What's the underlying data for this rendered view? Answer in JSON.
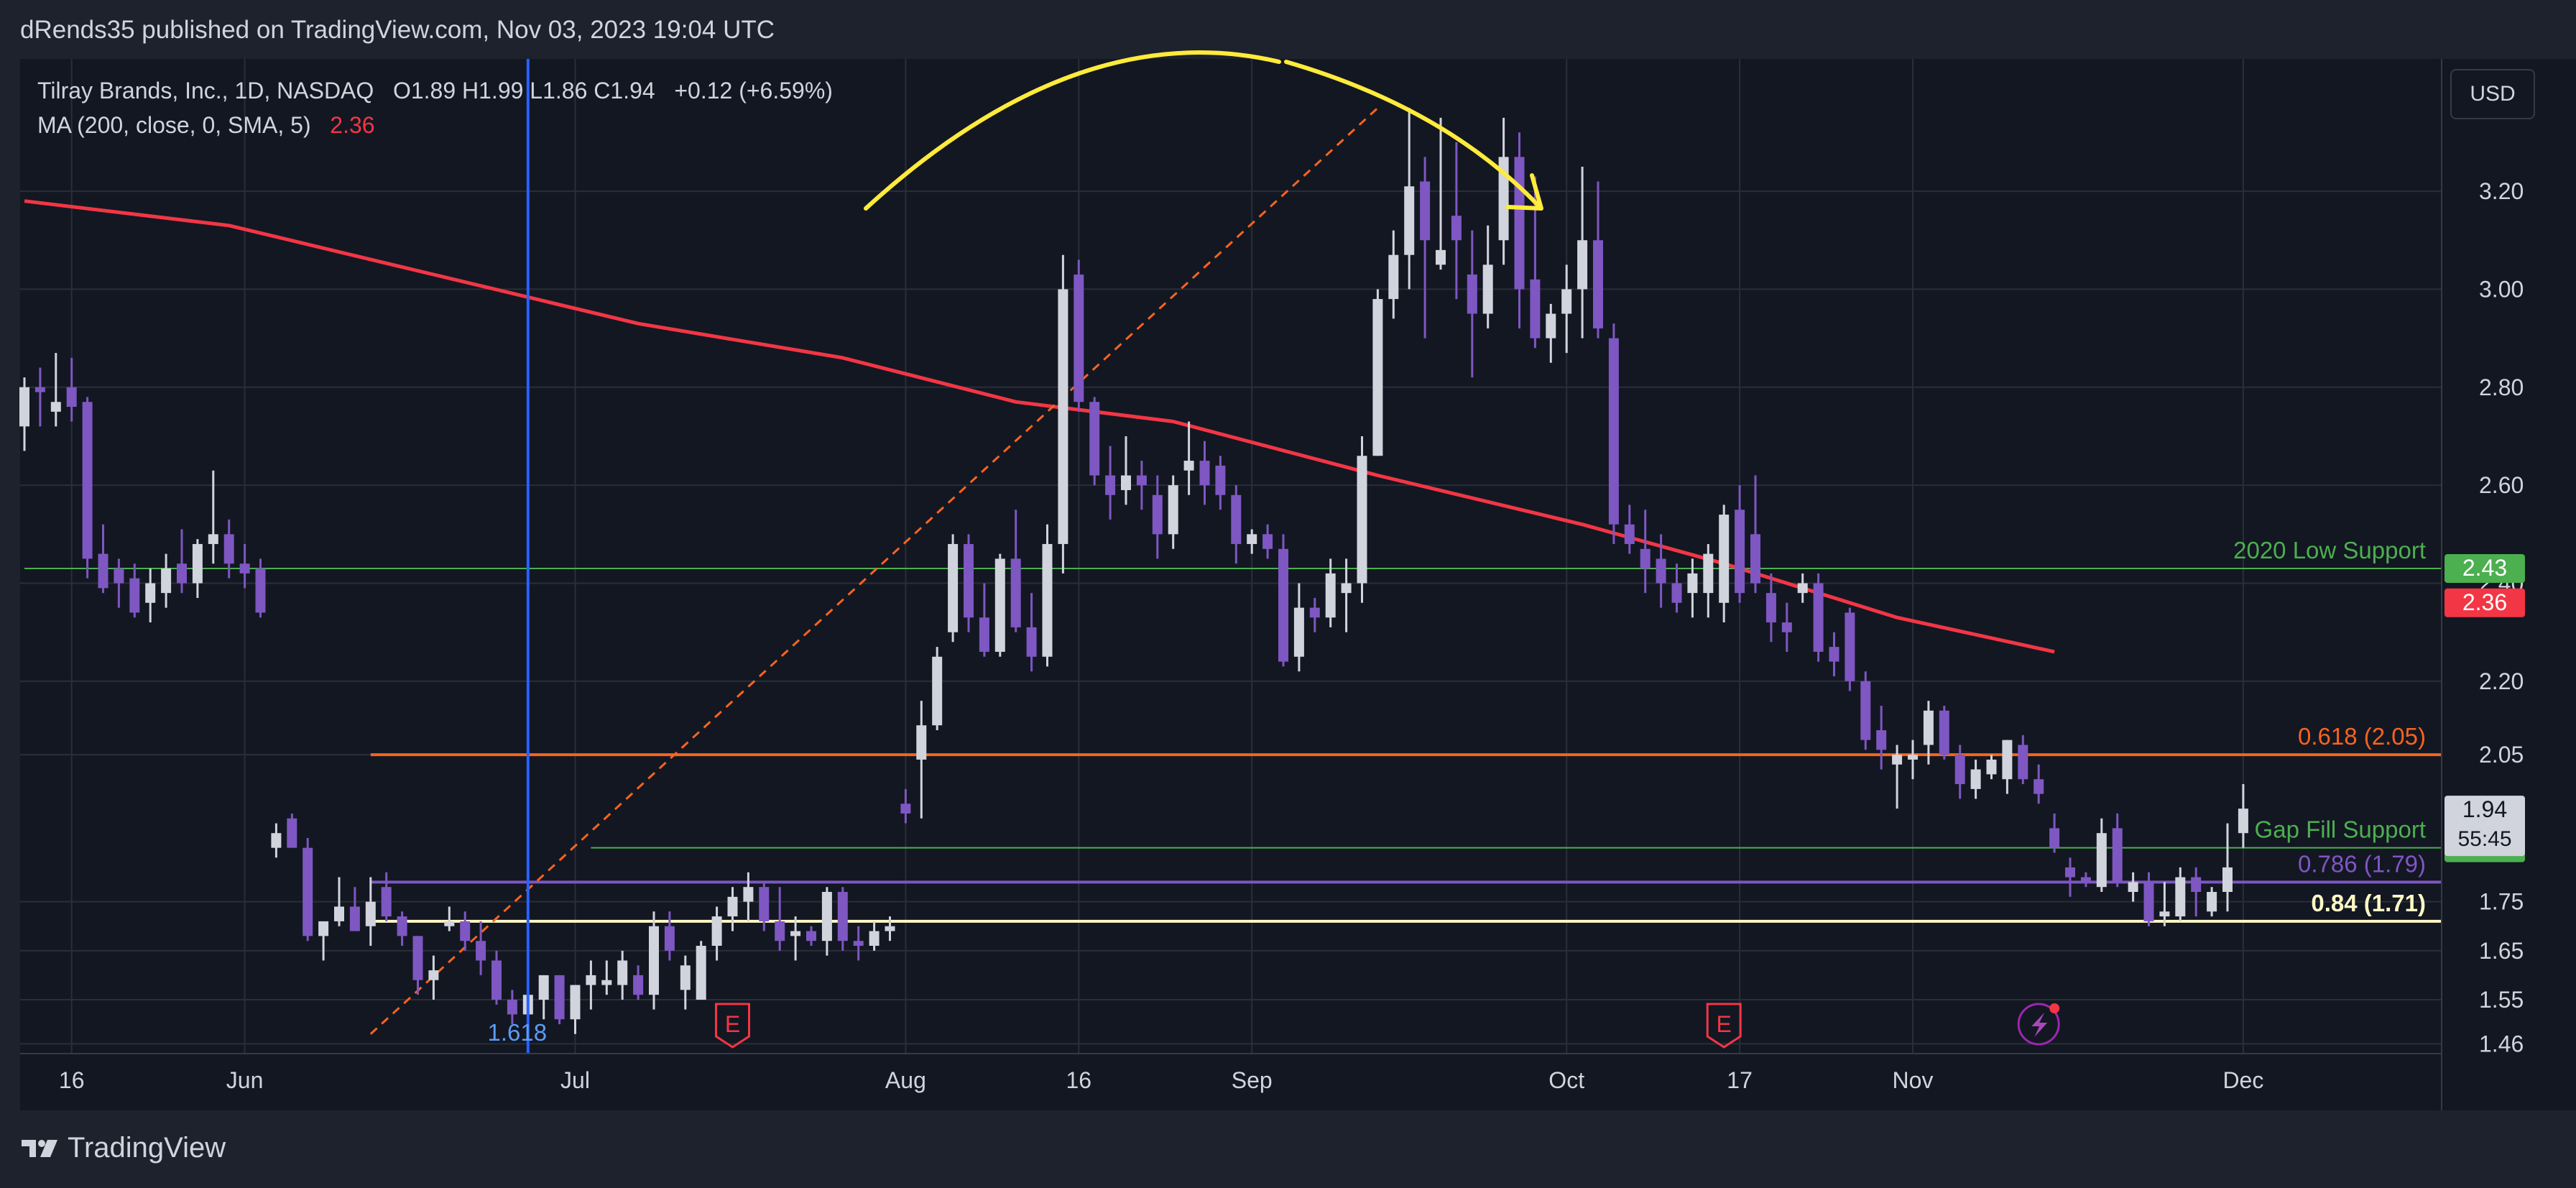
{
  "header": {
    "published": "dRends35 published on TradingView.com, Nov 03, 2023 19:04 UTC"
  },
  "legend": {
    "symbol": "Tilray Brands, Inc., 1D, NASDAQ",
    "ohlc": "O1.89  H1.99  L1.86  C1.94",
    "change": "+0.12 (+6.59%)",
    "ma_label": "MA (200, close, 0, SMA, 5)",
    "ma_value": "2.36"
  },
  "currency_button": "USD",
  "footer": {
    "brand": "TradingView"
  },
  "colors": {
    "background": "#131722",
    "up_candle": "#d1d4dc",
    "down_candle": "#7e57c2",
    "ma_line": "#f23645",
    "fib_0618": "#f7641e",
    "fib_0786": "#7e57c2",
    "fib_084": "#fff9c4",
    "support": "#4caf50",
    "arrow": "#ffeb3b",
    "vline": "#2962ff"
  },
  "chart_data": {
    "type": "candlestick",
    "title": "Tilray Brands, Inc., 1D, NASDAQ",
    "ylim": [
      1.44,
      3.47
    ],
    "y_ticks": [
      1.46,
      1.55,
      1.65,
      1.75,
      2.05,
      2.2,
      2.4,
      2.6,
      2.8,
      3.0,
      3.2
    ],
    "x_ticks": [
      {
        "label": "16",
        "i": 3
      },
      {
        "label": "Jun",
        "i": 14
      },
      {
        "label": "Jul",
        "i": 35
      },
      {
        "label": "Aug",
        "i": 56
      },
      {
        "label": "16",
        "i": 67
      },
      {
        "label": "Sep",
        "i": 78
      },
      {
        "label": "Oct",
        "i": 98
      },
      {
        "label": "17",
        "i": 109
      },
      {
        "label": "Nov",
        "i": 120
      },
      {
        "label": "Dec",
        "i": 141
      }
    ],
    "candles": [
      {
        "o": 2.72,
        "h": 2.82,
        "l": 2.67,
        "c": 2.8
      },
      {
        "o": 2.8,
        "h": 2.84,
        "l": 2.72,
        "c": 2.79
      },
      {
        "o": 2.75,
        "h": 2.87,
        "l": 2.72,
        "c": 2.77
      },
      {
        "o": 2.8,
        "h": 2.86,
        "l": 2.73,
        "c": 2.76
      },
      {
        "o": 2.77,
        "h": 2.78,
        "l": 2.41,
        "c": 2.45
      },
      {
        "o": 2.46,
        "h": 2.52,
        "l": 2.38,
        "c": 2.39
      },
      {
        "o": 2.43,
        "h": 2.45,
        "l": 2.35,
        "c": 2.4
      },
      {
        "o": 2.41,
        "h": 2.44,
        "l": 2.33,
        "c": 2.34
      },
      {
        "o": 2.36,
        "h": 2.43,
        "l": 2.32,
        "c": 2.4
      },
      {
        "o": 2.38,
        "h": 2.46,
        "l": 2.35,
        "c": 2.43
      },
      {
        "o": 2.44,
        "h": 2.51,
        "l": 2.38,
        "c": 2.4
      },
      {
        "o": 2.4,
        "h": 2.49,
        "l": 2.37,
        "c": 2.48
      },
      {
        "o": 2.48,
        "h": 2.63,
        "l": 2.44,
        "c": 2.5
      },
      {
        "o": 2.5,
        "h": 2.53,
        "l": 2.41,
        "c": 2.44
      },
      {
        "o": 2.44,
        "h": 2.48,
        "l": 2.39,
        "c": 2.42
      },
      {
        "o": 2.43,
        "h": 2.45,
        "l": 2.33,
        "c": 2.34
      },
      {
        "o": 1.86,
        "h": 1.91,
        "l": 1.84,
        "c": 1.89
      },
      {
        "o": 1.92,
        "h": 1.93,
        "l": 1.86,
        "c": 1.86
      },
      {
        "o": 1.86,
        "h": 1.88,
        "l": 1.67,
        "c": 1.68
      },
      {
        "o": 1.68,
        "h": 1.7,
        "l": 1.63,
        "c": 1.71
      },
      {
        "o": 1.71,
        "h": 1.8,
        "l": 1.7,
        "c": 1.74
      },
      {
        "o": 1.74,
        "h": 1.78,
        "l": 1.69,
        "c": 1.69
      },
      {
        "o": 1.7,
        "h": 1.8,
        "l": 1.66,
        "c": 1.75
      },
      {
        "o": 1.78,
        "h": 1.81,
        "l": 1.71,
        "c": 1.72
      },
      {
        "o": 1.72,
        "h": 1.73,
        "l": 1.66,
        "c": 1.68
      },
      {
        "o": 1.68,
        "h": 1.68,
        "l": 1.56,
        "c": 1.59
      },
      {
        "o": 1.59,
        "h": 1.64,
        "l": 1.55,
        "c": 1.61
      },
      {
        "o": 1.7,
        "h": 1.74,
        "l": 1.69,
        "c": 1.71
      },
      {
        "o": 1.71,
        "h": 1.73,
        "l": 1.65,
        "c": 1.67
      },
      {
        "o": 1.67,
        "h": 1.71,
        "l": 1.6,
        "c": 1.63
      },
      {
        "o": 1.63,
        "h": 1.65,
        "l": 1.54,
        "c": 1.55
      },
      {
        "o": 1.55,
        "h": 1.57,
        "l": 1.5,
        "c": 1.52
      },
      {
        "o": 1.52,
        "h": 1.58,
        "l": 1.5,
        "c": 1.56
      },
      {
        "o": 1.55,
        "h": 1.6,
        "l": 1.51,
        "c": 1.6
      },
      {
        "o": 1.6,
        "h": 1.6,
        "l": 1.5,
        "c": 1.51
      },
      {
        "o": 1.51,
        "h": 1.58,
        "l": 1.48,
        "c": 1.58
      },
      {
        "o": 1.58,
        "h": 1.63,
        "l": 1.53,
        "c": 1.6
      },
      {
        "o": 1.58,
        "h": 1.63,
        "l": 1.56,
        "c": 1.59
      },
      {
        "o": 1.58,
        "h": 1.65,
        "l": 1.55,
        "c": 1.63
      },
      {
        "o": 1.6,
        "h": 1.62,
        "l": 1.55,
        "c": 1.56
      },
      {
        "o": 1.56,
        "h": 1.73,
        "l": 1.53,
        "c": 1.7
      },
      {
        "o": 1.7,
        "h": 1.73,
        "l": 1.63,
        "c": 1.65
      },
      {
        "o": 1.57,
        "h": 1.64,
        "l": 1.53,
        "c": 1.62
      },
      {
        "o": 1.55,
        "h": 1.67,
        "l": 1.55,
        "c": 1.66
      },
      {
        "o": 1.66,
        "h": 1.74,
        "l": 1.63,
        "c": 1.72
      },
      {
        "o": 1.72,
        "h": 1.78,
        "l": 1.69,
        "c": 1.76
      },
      {
        "o": 1.75,
        "h": 1.81,
        "l": 1.71,
        "c": 1.78
      },
      {
        "o": 1.78,
        "h": 1.79,
        "l": 1.69,
        "c": 1.71
      },
      {
        "o": 1.71,
        "h": 1.78,
        "l": 1.65,
        "c": 1.67
      },
      {
        "o": 1.68,
        "h": 1.72,
        "l": 1.63,
        "c": 1.69
      },
      {
        "o": 1.69,
        "h": 1.7,
        "l": 1.66,
        "c": 1.67
      },
      {
        "o": 1.67,
        "h": 1.78,
        "l": 1.64,
        "c": 1.77
      },
      {
        "o": 1.77,
        "h": 1.78,
        "l": 1.65,
        "c": 1.67
      },
      {
        "o": 1.67,
        "h": 1.7,
        "l": 1.63,
        "c": 1.66
      },
      {
        "o": 1.66,
        "h": 1.71,
        "l": 1.65,
        "c": 1.69
      },
      {
        "o": 1.69,
        "h": 1.72,
        "l": 1.67,
        "c": 1.7
      },
      {
        "o": 1.95,
        "h": 1.98,
        "l": 1.91,
        "c": 1.93
      },
      {
        "o": 2.04,
        "h": 2.16,
        "l": 1.92,
        "c": 2.11
      },
      {
        "o": 2.11,
        "h": 2.27,
        "l": 2.1,
        "c": 2.25
      },
      {
        "o": 2.3,
        "h": 2.5,
        "l": 2.28,
        "c": 2.48
      },
      {
        "o": 2.48,
        "h": 2.5,
        "l": 2.3,
        "c": 2.33
      },
      {
        "o": 2.33,
        "h": 2.4,
        "l": 2.25,
        "c": 2.26
      },
      {
        "o": 2.26,
        "h": 2.46,
        "l": 2.25,
        "c": 2.45
      },
      {
        "o": 2.45,
        "h": 2.55,
        "l": 2.3,
        "c": 2.31
      },
      {
        "o": 2.31,
        "h": 2.38,
        "l": 2.22,
        "c": 2.25
      },
      {
        "o": 2.25,
        "h": 2.52,
        "l": 2.23,
        "c": 2.48
      },
      {
        "o": 2.48,
        "h": 3.07,
        "l": 2.42,
        "c": 3.0
      },
      {
        "o": 3.03,
        "h": 3.06,
        "l": 2.75,
        "c": 2.77
      },
      {
        "o": 2.77,
        "h": 2.78,
        "l": 2.6,
        "c": 2.62
      },
      {
        "o": 2.62,
        "h": 2.68,
        "l": 2.53,
        "c": 2.58
      },
      {
        "o": 2.59,
        "h": 2.7,
        "l": 2.56,
        "c": 2.62
      },
      {
        "o": 2.62,
        "h": 2.65,
        "l": 2.55,
        "c": 2.6
      },
      {
        "o": 2.58,
        "h": 2.62,
        "l": 2.45,
        "c": 2.5
      },
      {
        "o": 2.5,
        "h": 2.62,
        "l": 2.47,
        "c": 2.6
      },
      {
        "o": 2.63,
        "h": 2.73,
        "l": 2.58,
        "c": 2.65
      },
      {
        "o": 2.65,
        "h": 2.69,
        "l": 2.56,
        "c": 2.6
      },
      {
        "o": 2.64,
        "h": 2.66,
        "l": 2.55,
        "c": 2.58
      },
      {
        "o": 2.58,
        "h": 2.6,
        "l": 2.44,
        "c": 2.48
      },
      {
        "o": 2.48,
        "h": 2.51,
        "l": 2.46,
        "c": 2.5
      },
      {
        "o": 2.5,
        "h": 2.52,
        "l": 2.45,
        "c": 2.47
      },
      {
        "o": 2.47,
        "h": 2.5,
        "l": 2.23,
        "c": 2.24
      },
      {
        "o": 2.25,
        "h": 2.4,
        "l": 2.22,
        "c": 2.35
      },
      {
        "o": 2.35,
        "h": 2.37,
        "l": 2.3,
        "c": 2.33
      },
      {
        "o": 2.33,
        "h": 2.45,
        "l": 2.31,
        "c": 2.42
      },
      {
        "o": 2.38,
        "h": 2.45,
        "l": 2.3,
        "c": 2.4
      },
      {
        "o": 2.4,
        "h": 2.7,
        "l": 2.36,
        "c": 2.66
      },
      {
        "o": 2.66,
        "h": 3.0,
        "l": 2.66,
        "c": 2.98
      },
      {
        "o": 2.98,
        "h": 3.12,
        "l": 2.94,
        "c": 3.07
      },
      {
        "o": 3.07,
        "h": 3.37,
        "l": 3.0,
        "c": 3.21
      },
      {
        "o": 3.22,
        "h": 3.27,
        "l": 2.9,
        "c": 3.1
      },
      {
        "o": 3.05,
        "h": 3.35,
        "l": 3.04,
        "c": 3.08
      },
      {
        "o": 3.15,
        "h": 3.3,
        "l": 2.98,
        "c": 3.1
      },
      {
        "o": 3.03,
        "h": 3.12,
        "l": 2.82,
        "c": 2.95
      },
      {
        "o": 2.95,
        "h": 3.13,
        "l": 2.92,
        "c": 3.05
      },
      {
        "o": 3.1,
        "h": 3.35,
        "l": 3.05,
        "c": 3.27
      },
      {
        "o": 3.27,
        "h": 3.32,
        "l": 2.92,
        "c": 3.0
      },
      {
        "o": 3.02,
        "h": 3.23,
        "l": 2.88,
        "c": 2.9
      },
      {
        "o": 2.9,
        "h": 2.97,
        "l": 2.85,
        "c": 2.95
      },
      {
        "o": 2.95,
        "h": 3.05,
        "l": 2.87,
        "c": 3.0
      },
      {
        "o": 3.0,
        "h": 3.25,
        "l": 2.9,
        "c": 3.1
      },
      {
        "o": 3.1,
        "h": 3.22,
        "l": 2.9,
        "c": 2.92
      },
      {
        "o": 2.9,
        "h": 2.93,
        "l": 2.48,
        "c": 2.52
      },
      {
        "o": 2.52,
        "h": 2.56,
        "l": 2.46,
        "c": 2.48
      },
      {
        "o": 2.47,
        "h": 2.55,
        "l": 2.38,
        "c": 2.43
      },
      {
        "o": 2.45,
        "h": 2.5,
        "l": 2.35,
        "c": 2.4
      },
      {
        "o": 2.4,
        "h": 2.44,
        "l": 2.34,
        "c": 2.36
      },
      {
        "o": 2.38,
        "h": 2.45,
        "l": 2.33,
        "c": 2.42
      },
      {
        "o": 2.38,
        "h": 2.48,
        "l": 2.33,
        "c": 2.46
      },
      {
        "o": 2.36,
        "h": 2.56,
        "l": 2.32,
        "c": 2.54
      },
      {
        "o": 2.55,
        "h": 2.6,
        "l": 2.36,
        "c": 2.38
      },
      {
        "o": 2.5,
        "h": 2.62,
        "l": 2.38,
        "c": 2.4
      },
      {
        "o": 2.38,
        "h": 2.42,
        "l": 2.28,
        "c": 2.32
      },
      {
        "o": 2.32,
        "h": 2.36,
        "l": 2.26,
        "c": 2.3
      },
      {
        "o": 2.38,
        "h": 2.42,
        "l": 2.36,
        "c": 2.4
      },
      {
        "o": 2.4,
        "h": 2.42,
        "l": 2.24,
        "c": 2.26
      },
      {
        "o": 2.27,
        "h": 2.3,
        "l": 2.21,
        "c": 2.24
      },
      {
        "o": 2.34,
        "h": 2.35,
        "l": 2.18,
        "c": 2.2
      },
      {
        "o": 2.2,
        "h": 2.22,
        "l": 2.06,
        "c": 2.08
      },
      {
        "o": 2.1,
        "h": 2.15,
        "l": 2.02,
        "c": 2.06
      },
      {
        "o": 2.03,
        "h": 2.07,
        "l": 1.94,
        "c": 2.05
      },
      {
        "o": 2.04,
        "h": 2.08,
        "l": 2.0,
        "c": 2.05
      },
      {
        "o": 2.07,
        "h": 2.16,
        "l": 2.03,
        "c": 2.14
      },
      {
        "o": 2.14,
        "h": 2.15,
        "l": 2.04,
        "c": 2.05
      },
      {
        "o": 2.05,
        "h": 2.07,
        "l": 1.96,
        "c": 1.99
      },
      {
        "o": 1.98,
        "h": 2.04,
        "l": 1.96,
        "c": 2.02
      },
      {
        "o": 2.01,
        "h": 2.05,
        "l": 2.0,
        "c": 2.04
      },
      {
        "o": 2.0,
        "h": 2.08,
        "l": 1.97,
        "c": 2.08
      },
      {
        "o": 2.07,
        "h": 2.09,
        "l": 1.99,
        "c": 2.0
      },
      {
        "o": 2.0,
        "h": 2.03,
        "l": 1.95,
        "c": 1.97
      },
      {
        "o": 1.9,
        "h": 1.93,
        "l": 1.85,
        "c": 1.86
      },
      {
        "o": 1.82,
        "h": 1.84,
        "l": 1.76,
        "c": 1.8
      },
      {
        "o": 1.8,
        "h": 1.81,
        "l": 1.78,
        "c": 1.79
      },
      {
        "o": 1.78,
        "h": 1.92,
        "l": 1.77,
        "c": 1.89
      },
      {
        "o": 1.9,
        "h": 1.93,
        "l": 1.78,
        "c": 1.79
      },
      {
        "o": 1.77,
        "h": 1.81,
        "l": 1.75,
        "c": 1.79
      },
      {
        "o": 1.79,
        "h": 1.81,
        "l": 1.7,
        "c": 1.71
      },
      {
        "o": 1.72,
        "h": 1.79,
        "l": 1.7,
        "c": 1.73
      },
      {
        "o": 1.72,
        "h": 1.82,
        "l": 1.71,
        "c": 1.8
      },
      {
        "o": 1.8,
        "h": 1.82,
        "l": 1.72,
        "c": 1.77
      },
      {
        "o": 1.73,
        "h": 1.78,
        "l": 1.72,
        "c": 1.77
      },
      {
        "o": 1.77,
        "h": 1.91,
        "l": 1.73,
        "c": 1.82
      },
      {
        "o": 1.89,
        "h": 1.99,
        "l": 1.86,
        "c": 1.94
      }
    ],
    "ma_line": {
      "name": "MA (200, close, 0, SMA, 5)",
      "points": [
        [
          0,
          3.18
        ],
        [
          13,
          3.13
        ],
        [
          26,
          3.03
        ],
        [
          39,
          2.93
        ],
        [
          52,
          2.86
        ],
        [
          63,
          2.77
        ],
        [
          73,
          2.73
        ],
        [
          86,
          2.62
        ],
        [
          99,
          2.52
        ],
        [
          108,
          2.44
        ],
        [
          119,
          2.33
        ],
        [
          129,
          2.26
        ]
      ]
    },
    "horizontal_levels": [
      {
        "label": "2020 Low Support",
        "value": 2.43,
        "color": "#4caf50",
        "from_i": 0,
        "badge": "2.43"
      },
      {
        "label": "0.618 (2.05)",
        "value": 2.05,
        "color": "#f7641e",
        "from_i": 22
      },
      {
        "label": "Gap Fill Support",
        "value": 1.86,
        "color": "#4caf50",
        "from_i": 36,
        "badge": "1.86"
      },
      {
        "label": "0.786 (1.79)",
        "value": 1.79,
        "color": "#7e57c2",
        "from_i": 22
      },
      {
        "label": "0.84 (1.71)",
        "value": 1.71,
        "color": "#fff9c4",
        "from_i": 22
      }
    ],
    "price_badges": [
      {
        "value": 2.36,
        "label": "2.36",
        "color": "#f23645"
      },
      {
        "value": 1.94,
        "label": "1.94",
        "sub": "55:45",
        "color": "#d1d4dc"
      }
    ],
    "trend_line": {
      "from": [
        22,
        1.48
      ],
      "to": [
        86,
        3.37
      ],
      "color": "#f7641e"
    },
    "vertical_line": {
      "i": 32,
      "label": "1.618"
    },
    "earnings_markers": [
      {
        "i": 45,
        "label": "E"
      },
      {
        "i": 108,
        "label": "E"
      }
    ],
    "flash_marker": {
      "i": 128
    }
  }
}
